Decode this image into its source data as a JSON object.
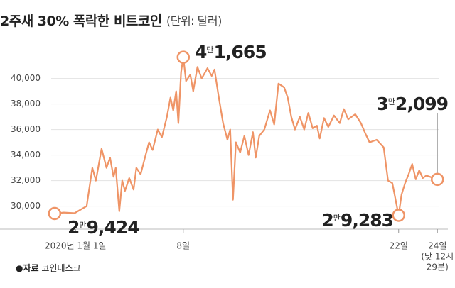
{
  "chart_data": {
    "type": "line",
    "title": "2주새 30% 폭락한 비트코인",
    "unit": "(단위: 달러)",
    "source": {
      "label": "●자료",
      "name": "코인데스크"
    },
    "x": [
      -0.36,
      0.24,
      0.93,
      1.72,
      2.09,
      2.32,
      2.69,
      3.01,
      3.24,
      3.47,
      3.61,
      3.84,
      4.03,
      4.21,
      4.49,
      4.77,
      4.95,
      5.23,
      5.55,
      5.78,
      6.01,
      6.34,
      6.61,
      6.94,
      7.17,
      7.35,
      7.54,
      7.68,
      7.86,
      8.0,
      8.18,
      8.46,
      8.65,
      8.92,
      9.2,
      9.57,
      9.85,
      10.03,
      10.31,
      10.59,
      10.87,
      11.05,
      11.23,
      11.42,
      11.7,
      11.97,
      12.25,
      12.53,
      12.71,
      12.94,
      13.27,
      13.64,
      13.91,
      14.19,
      14.56,
      14.79,
      15.02,
      15.26,
      15.58,
      15.86,
      16.13,
      16.41,
      16.69,
      16.87,
      17.15,
      17.43,
      17.8,
      18.17,
      18.44,
      18.72,
      19.18,
      19.55,
      19.83,
      20.11,
      20.57,
      21.03,
      21.31,
      21.59,
      22.0,
      22.19,
      22.42,
      22.65,
      22.88,
      23.11,
      23.34,
      23.57,
      23.8,
      24.52
    ],
    "series": [
      {
        "color": "#ef9466",
        "values": [
          29424,
          29500,
          29450,
          30000,
          33000,
          32000,
          34500,
          33000,
          33800,
          32300,
          33000,
          29600,
          32000,
          31200,
          32200,
          31300,
          33000,
          32500,
          34000,
          35000,
          34400,
          36000,
          35400,
          37000,
          38500,
          37500,
          39000,
          36500,
          40500,
          41665,
          39800,
          40300,
          39000,
          40900,
          40000,
          40800,
          40200,
          40700,
          38500,
          36500,
          35200,
          36000,
          30500,
          35000,
          34200,
          35500,
          34000,
          35800,
          33800,
          35500,
          36000,
          37500,
          36400,
          39600,
          39300,
          38500,
          37000,
          36000,
          37000,
          36000,
          37300,
          36100,
          36300,
          35300,
          36900,
          36200,
          37100,
          36500,
          37600,
          36800,
          37200,
          36500,
          35700,
          35000,
          35200,
          34600,
          32000,
          31800,
          29283,
          30900,
          31800,
          32500,
          33300,
          32100,
          32800,
          32200,
          32400,
          32099
        ]
      }
    ],
    "xlim": [
      -0.4,
      24.6
    ],
    "ylim": [
      28200,
      42700
    ],
    "xticks": [
      {
        "value": 1,
        "label": "2020년 1월 1일"
      },
      {
        "value": 8,
        "label": "8일"
      },
      {
        "value": 22,
        "label": "22일"
      },
      {
        "value": 24.52,
        "label": [
          "24일",
          "(낮 12시",
          "29분)"
        ]
      }
    ],
    "yticks": [
      {
        "value": 30000,
        "label": "30,000"
      },
      {
        "value": 32000,
        "label": "32,000"
      },
      {
        "value": 34000,
        "label": "34,000"
      },
      {
        "value": 36000,
        "label": "36,000"
      },
      {
        "value": 38000,
        "label": "38,000"
      },
      {
        "value": 40000,
        "label": "40,000"
      }
    ],
    "grid": true,
    "annotations": [
      {
        "parts": [
          "4",
          "만",
          "1,665"
        ]
      },
      {
        "parts": [
          "3",
          "만",
          "2,099"
        ]
      },
      {
        "parts": [
          "2",
          "만",
          "9,283"
        ]
      },
      {
        "parts": [
          "2",
          "만",
          "9,424"
        ]
      }
    ]
  }
}
